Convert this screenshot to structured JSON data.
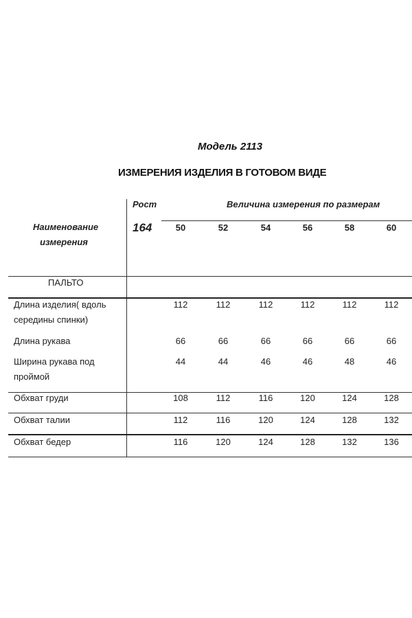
{
  "title": "Модель 2113",
  "subtitle": "ИЗМЕРЕНИЯ ИЗДЕЛИЯ В ГОТОВОМ ВИДЕ",
  "header": {
    "name_col": [
      "Наименование",
      "измерения"
    ],
    "height_label": "Рост",
    "height_value": "164",
    "sizes_label": "Величина измерения по размерам",
    "sizes": [
      "50",
      "52",
      "54",
      "56",
      "58",
      "60"
    ]
  },
  "section": "ПАЛЬТО",
  "rows": [
    {
      "name": [
        "Длина изделия( вдоль",
        "середины спинки)"
      ],
      "values": [
        "112",
        "112",
        "112",
        "112",
        "112",
        "112"
      ]
    },
    {
      "name": [
        "Длина рукава"
      ],
      "values": [
        "66",
        "66",
        "66",
        "66",
        "66",
        "66"
      ]
    },
    {
      "name": [
        "Ширина рукава под",
        "проймой"
      ],
      "values": [
        "44",
        "44",
        "46",
        "46",
        "48",
        "46"
      ]
    },
    {
      "name": [
        "Обхват груди"
      ],
      "values": [
        "108",
        "112",
        "116",
        "120",
        "124",
        "128"
      ]
    },
    {
      "name": [
        "Обхват талии"
      ],
      "values": [
        "112",
        "116",
        "120",
        "124",
        "128",
        "132"
      ]
    },
    {
      "name": [
        "Обхват бедер"
      ],
      "values": [
        "116",
        "120",
        "124",
        "128",
        "132",
        "136"
      ]
    }
  ]
}
